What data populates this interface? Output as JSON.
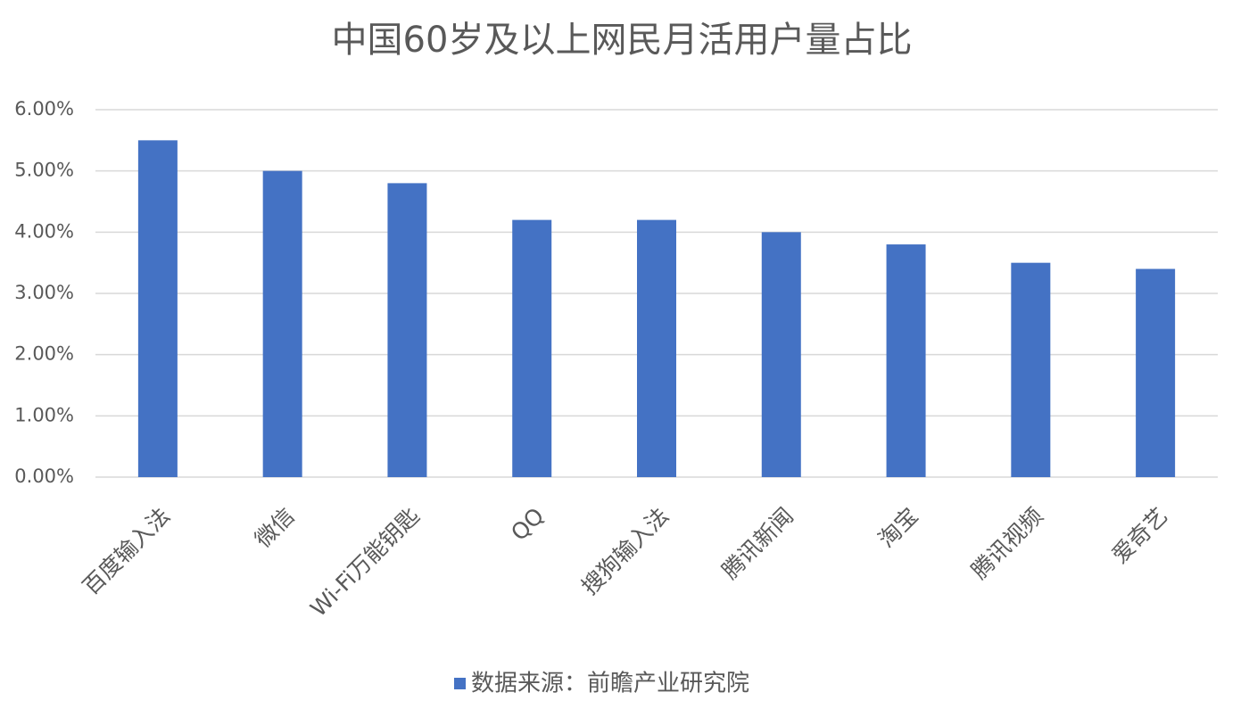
{
  "chart_data": {
    "type": "bar",
    "title": "中国60岁及以上网民月活用户量占比",
    "categories": [
      "百度输入法",
      "微信",
      "Wi-Fi万能钥匙",
      "QQ",
      "搜狗输入法",
      "腾讯新闻",
      "淘宝",
      "腾讯视频",
      "爱奇艺"
    ],
    "series": [
      {
        "name": "数据来源：前瞻产业研究院",
        "color": "#4472c4",
        "values": [
          5.5,
          5.0,
          4.8,
          4.2,
          4.2,
          4.0,
          3.8,
          3.5,
          3.4
        ]
      }
    ],
    "ylim": [
      0,
      6
    ],
    "yticks": [
      {
        "value": 0,
        "label": "0.00%"
      },
      {
        "value": 1,
        "label": "1.00%"
      },
      {
        "value": 2,
        "label": "2.00%"
      },
      {
        "value": 3,
        "label": "3.00%"
      },
      {
        "value": 4,
        "label": "4.00%"
      },
      {
        "value": 5,
        "label": "5.00%"
      },
      {
        "value": 6,
        "label": "6.00%"
      }
    ],
    "grid": true,
    "legend": "bottom"
  }
}
